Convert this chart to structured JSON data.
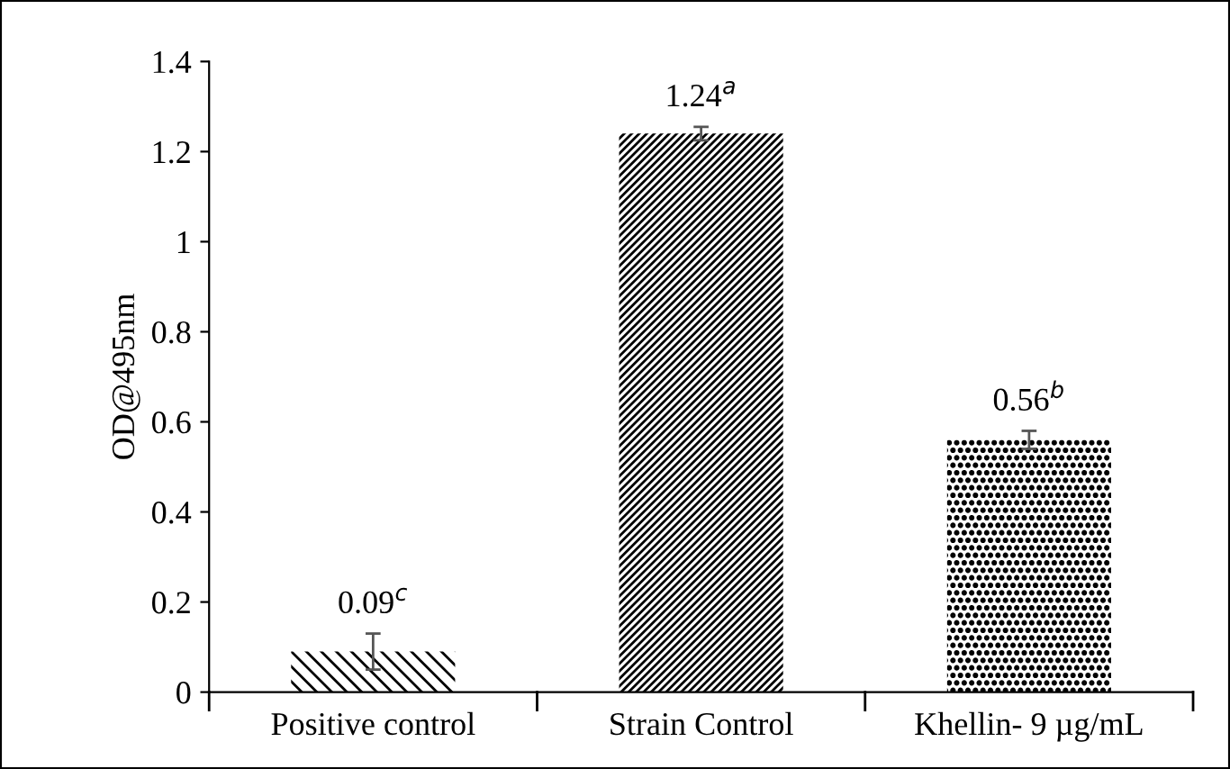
{
  "chart_data": {
    "type": "bar",
    "ylabel": "OD@495nm",
    "categories": [
      "Positive control",
      "Strain Control",
      "Khellin- 9 µg/mL"
    ],
    "values": [
      0.09,
      1.24,
      0.56
    ],
    "errors": [
      0.04,
      0.015,
      0.02
    ],
    "colors": [
      "#000000",
      "#000000",
      "#000000"
    ],
    "value_labels": [
      "0.09$^{c}$",
      "1.24$^{a}$",
      "0.56$^{b}$"
    ],
    "ylim": [
      0,
      1.4
    ],
    "yticks": [
      0,
      0.2,
      0.4,
      0.6,
      0.8,
      1,
      1.2,
      1.4
    ],
    "grid": false,
    "legend": false
  }
}
